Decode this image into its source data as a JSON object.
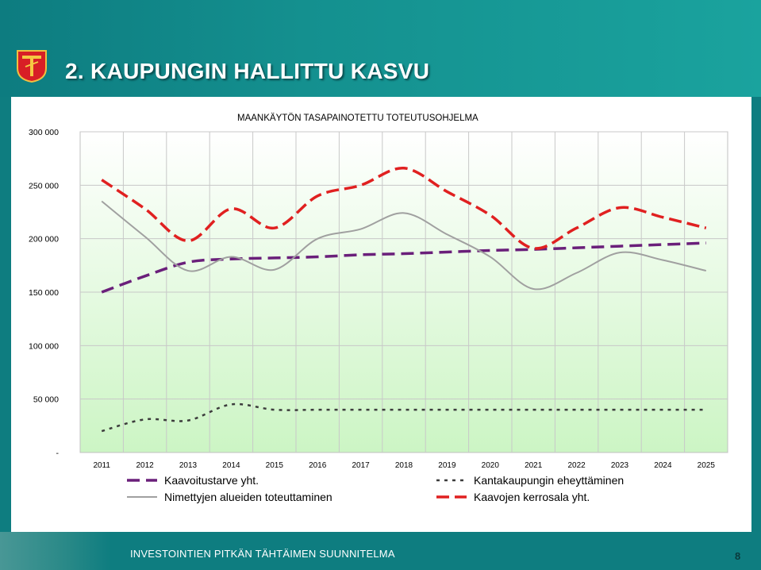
{
  "slide": {
    "title": "2. KAUPUNGIN HALLITTU KASVU",
    "footer_text": "INVESTOINTIEN PITKÄN TÄHTÄIMEN SUUNNITELMA",
    "page_number": "8"
  },
  "chart_data": {
    "type": "line",
    "title": "MAANKÄYTÖN TASAPAINOTETTU TOTEUTUSOHJELMA",
    "categories": [
      "2011",
      "2012",
      "2013",
      "2014",
      "2015",
      "2016",
      "2017",
      "2018",
      "2019",
      "2020",
      "2021",
      "2022",
      "2023",
      "2024",
      "2025"
    ],
    "ylim": [
      0,
      300000
    ],
    "y_ticks": [
      {
        "value": 0,
        "label": "-"
      },
      {
        "value": 50000,
        "label": "50 000"
      },
      {
        "value": 100000,
        "label": "100 000"
      },
      {
        "value": 150000,
        "label": "150 000"
      },
      {
        "value": 200000,
        "label": "200 000"
      },
      {
        "value": 250000,
        "label": "250 000"
      },
      {
        "value": 300000,
        "label": "300 000"
      }
    ],
    "grid": true,
    "legend_position": "bottom",
    "series": [
      {
        "name": "Kaavoitustarve yht.",
        "color": "#6a1f7a",
        "dash": "long",
        "values": [
          150000,
          165000,
          178000,
          181000,
          182000,
          183000,
          185000,
          186000,
          187500,
          189000,
          190000,
          191500,
          193000,
          194500,
          196000
        ]
      },
      {
        "name": "Kantakaupungin eheyttäminen",
        "color": "#3d3d3d",
        "dash": "short",
        "values": [
          20000,
          31000,
          30000,
          45000,
          40000,
          40000,
          40000,
          40000,
          40000,
          40000,
          40000,
          40000,
          40000,
          40000,
          40000
        ]
      },
      {
        "name": "Nimettyjen alueiden toteuttaminen",
        "color": "#a0a0a0",
        "dash": "solid",
        "values": [
          235000,
          202000,
          170000,
          183000,
          171000,
          200000,
          209000,
          224000,
          204000,
          183000,
          153000,
          168000,
          187000,
          180000,
          170000
        ]
      },
      {
        "name": "Kaavojen kerrosala yht.",
        "color": "#e02020",
        "dash": "dash",
        "values": [
          255000,
          228000,
          198000,
          228000,
          210000,
          240000,
          250000,
          266000,
          244000,
          222000,
          191000,
          210000,
          229000,
          220000,
          210000
        ]
      }
    ]
  }
}
